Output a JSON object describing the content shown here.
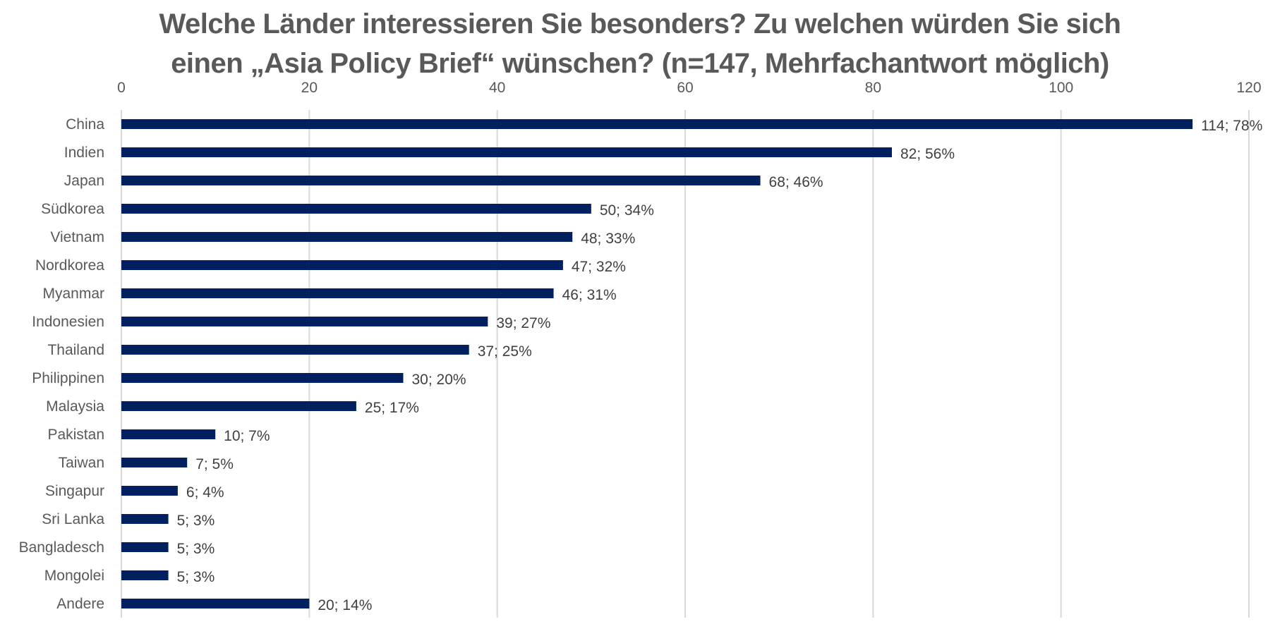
{
  "chart_data": {
    "type": "bar",
    "orientation": "horizontal",
    "title_lines": [
      "Welche Länder interessieren Sie besonders? Zu welchen würden Sie sich",
      "einen „Asia Policy Brief“ wünschen? (n=147, Mehrfachantwort möglich)"
    ],
    "xlabel": "",
    "ylabel": "",
    "xlim": [
      0,
      120
    ],
    "x_ticks": [
      0,
      20,
      40,
      60,
      80,
      100,
      120
    ],
    "x_axis_position": "top",
    "grid": true,
    "legend": "none",
    "bar_color": "#002060",
    "categories": [
      "China",
      "Indien",
      "Japan",
      "Südkorea",
      "Vietnam",
      "Nordkorea",
      "Myanmar",
      "Indonesien",
      "Thailand",
      "Philippinen",
      "Malaysia",
      "Pakistan",
      "Taiwan",
      "Singapur",
      "Sri Lanka",
      "Bangladesch",
      "Mongolei",
      "Andere"
    ],
    "values": [
      114,
      82,
      68,
      50,
      48,
      47,
      46,
      39,
      37,
      30,
      25,
      10,
      7,
      6,
      5,
      5,
      5,
      20
    ],
    "percentages": [
      78,
      56,
      46,
      34,
      33,
      32,
      31,
      27,
      25,
      20,
      17,
      7,
      5,
      4,
      3,
      3,
      3,
      14
    ],
    "data_labels": [
      "114; 78%",
      "82; 56%",
      "68; 46%",
      "50; 34%",
      "48; 33%",
      "47; 32%",
      "46; 31%",
      "39; 27%",
      "37; 25%",
      "30; 20%",
      "25; 17%",
      "10; 7%",
      "7; 5%",
      "6; 4%",
      "5; 3%",
      "5; 3%",
      "5; 3%",
      "20; 14%"
    ]
  }
}
